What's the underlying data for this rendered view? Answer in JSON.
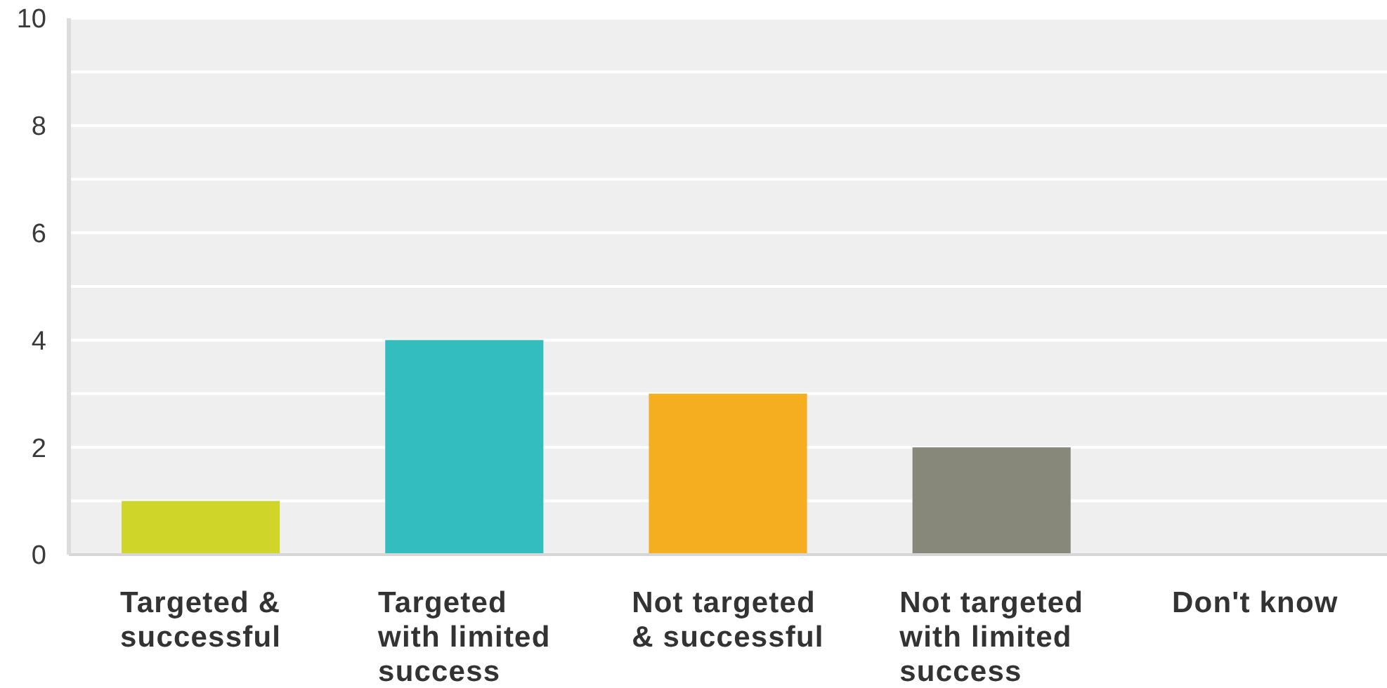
{
  "chart_data": {
    "type": "bar",
    "categories": [
      "Targeted & successful",
      "Targeted with limited success",
      "Not targeted & successful",
      "Not targeted with limited success",
      "Don't know"
    ],
    "values": [
      1,
      4,
      3,
      2,
      0
    ],
    "colors": [
      "#d0d52a",
      "#33bdbe",
      "#f5ae20",
      "#87887a",
      null
    ],
    "ylim": [
      0,
      10
    ],
    "yticks": [
      0,
      {
        "value": 1,
        "label": null
      },
      2,
      {
        "value": 3,
        "label": null
      },
      4,
      {
        "value": 5,
        "label": null
      },
      6,
      {
        "value": 7,
        "label": null
      },
      8,
      {
        "value": 9,
        "label": null
      },
      10
    ],
    "grid": "y"
  }
}
